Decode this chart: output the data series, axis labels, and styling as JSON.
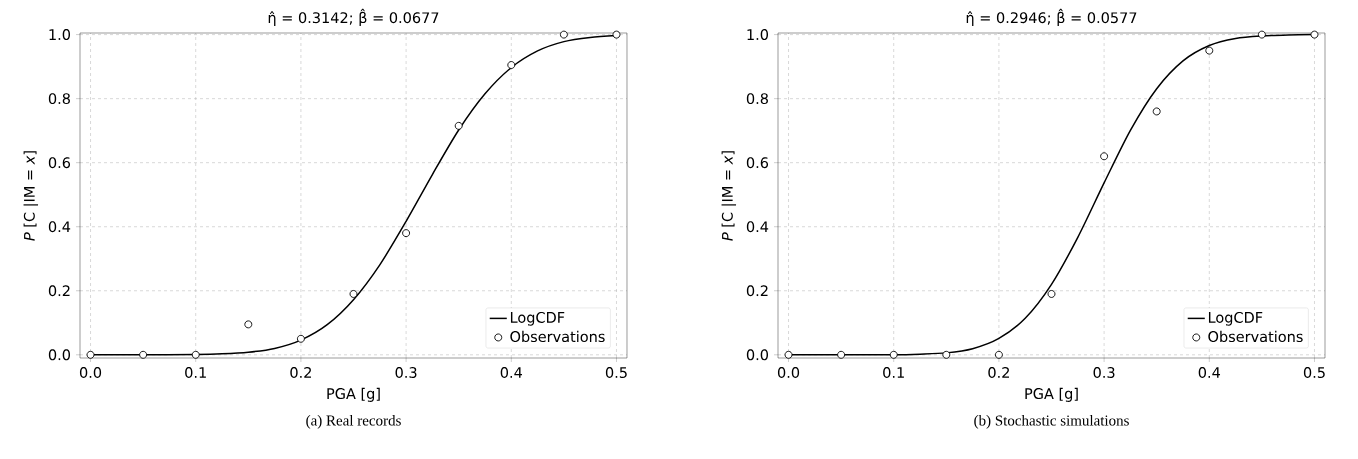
{
  "chart_data": [
    {
      "type": "line",
      "title": "η̂ = 0.3142; β̂ = 0.0677",
      "xlabel": "PGA [g]",
      "ylabel": "*P* [C |IM = *x*]",
      "xlim": [
        -0.01,
        0.51
      ],
      "ylim": [
        -0.01,
        1.005
      ],
      "xticks": [
        {
          "value": 0,
          "label": "0.0"
        },
        {
          "value": 0.1,
          "label": "0.1"
        },
        {
          "value": 0.2,
          "label": "0.2"
        },
        {
          "value": 0.3,
          "label": "0.3"
        },
        {
          "value": 0.4,
          "label": "0.4"
        },
        {
          "value": 0.5,
          "label": "0.5"
        }
      ],
      "yticks": [
        {
          "value": 0,
          "label": "0.0"
        },
        {
          "value": 0.2,
          "label": "0.2"
        },
        {
          "value": 0.4,
          "label": "0.4"
        },
        {
          "value": 0.6,
          "label": "0.6"
        },
        {
          "value": 0.8,
          "label": "0.8"
        },
        {
          "value": 1,
          "label": "1.0"
        }
      ],
      "grid": true,
      "legend": "bottom right",
      "annotations": [
        "(a)   Real records"
      ],
      "series": [
        {
          "name": "LogCDF",
          "type": "line",
          "color": "#000000",
          "marker": "none",
          "line_style": "solid",
          "x": [
            0,
            0.05,
            0.1,
            0.125,
            0.15,
            0.175,
            0.2,
            0.225,
            0.25,
            0.275,
            0.3,
            0.325,
            0.35,
            0.375,
            0.4,
            0.425,
            0.45,
            0.475,
            0.5
          ],
          "values": [
            0,
            0,
            0.001,
            0.003,
            0.008,
            0.02,
            0.046,
            0.094,
            0.172,
            0.281,
            0.417,
            0.563,
            0.702,
            0.815,
            0.897,
            0.949,
            0.978,
            0.991,
            0.997
          ]
        },
        {
          "name": "Observations",
          "type": "scatter",
          "color": "#000000",
          "marker": "circle",
          "x": [
            0,
            0.05,
            0.1,
            0.15,
            0.2,
            0.25,
            0.3,
            0.35,
            0.4,
            0.45,
            0.5
          ],
          "values": [
            0,
            0,
            0,
            0.095,
            0.05,
            0.19,
            0.38,
            0.715,
            0.905,
            1,
            1
          ]
        }
      ]
    },
    {
      "type": "line",
      "title": "η̂ = 0.2946; β̂ = 0.0577",
      "xlabel": "PGA [g]",
      "ylabel": "*P* [C |IM = *x*]",
      "xlim": [
        -0.01,
        0.51
      ],
      "ylim": [
        -0.01,
        1.005
      ],
      "xticks": [
        {
          "value": 0,
          "label": "0.0"
        },
        {
          "value": 0.1,
          "label": "0.1"
        },
        {
          "value": 0.2,
          "label": "0.2"
        },
        {
          "value": 0.3,
          "label": "0.3"
        },
        {
          "value": 0.4,
          "label": "0.4"
        },
        {
          "value": 0.5,
          "label": "0.5"
        }
      ],
      "yticks": [
        {
          "value": 0,
          "label": "0.0"
        },
        {
          "value": 0.2,
          "label": "0.2"
        },
        {
          "value": 0.4,
          "label": "0.4"
        },
        {
          "value": 0.6,
          "label": "0.6"
        },
        {
          "value": 0.8,
          "label": "0.8"
        },
        {
          "value": 1,
          "label": "1.0"
        }
      ],
      "grid": true,
      "legend": "bottom right",
      "annotations": [
        "(b)   Stochastic simulations"
      ],
      "series": [
        {
          "name": "LogCDF",
          "type": "line",
          "color": "#000000",
          "marker": "none",
          "line_style": "solid",
          "x": [
            0,
            0.05,
            0.1,
            0.125,
            0.15,
            0.175,
            0.2,
            0.225,
            0.25,
            0.275,
            0.3,
            0.325,
            0.35,
            0.375,
            0.4,
            0.425,
            0.45,
            0.475,
            0.5
          ],
          "values": [
            0,
            0,
            0,
            0.002,
            0.006,
            0.019,
            0.051,
            0.114,
            0.22,
            0.367,
            0.537,
            0.701,
            0.831,
            0.918,
            0.966,
            0.988,
            0.996,
            0.999,
            1
          ]
        },
        {
          "name": "Observations",
          "type": "scatter",
          "color": "#000000",
          "marker": "circle",
          "x": [
            0,
            0.05,
            0.1,
            0.15,
            0.2,
            0.25,
            0.3,
            0.35,
            0.4,
            0.45,
            0.5
          ],
          "values": [
            0,
            0,
            0,
            0,
            0,
            0.19,
            0.62,
            0.76,
            0.95,
            1,
            1
          ]
        }
      ]
    }
  ]
}
